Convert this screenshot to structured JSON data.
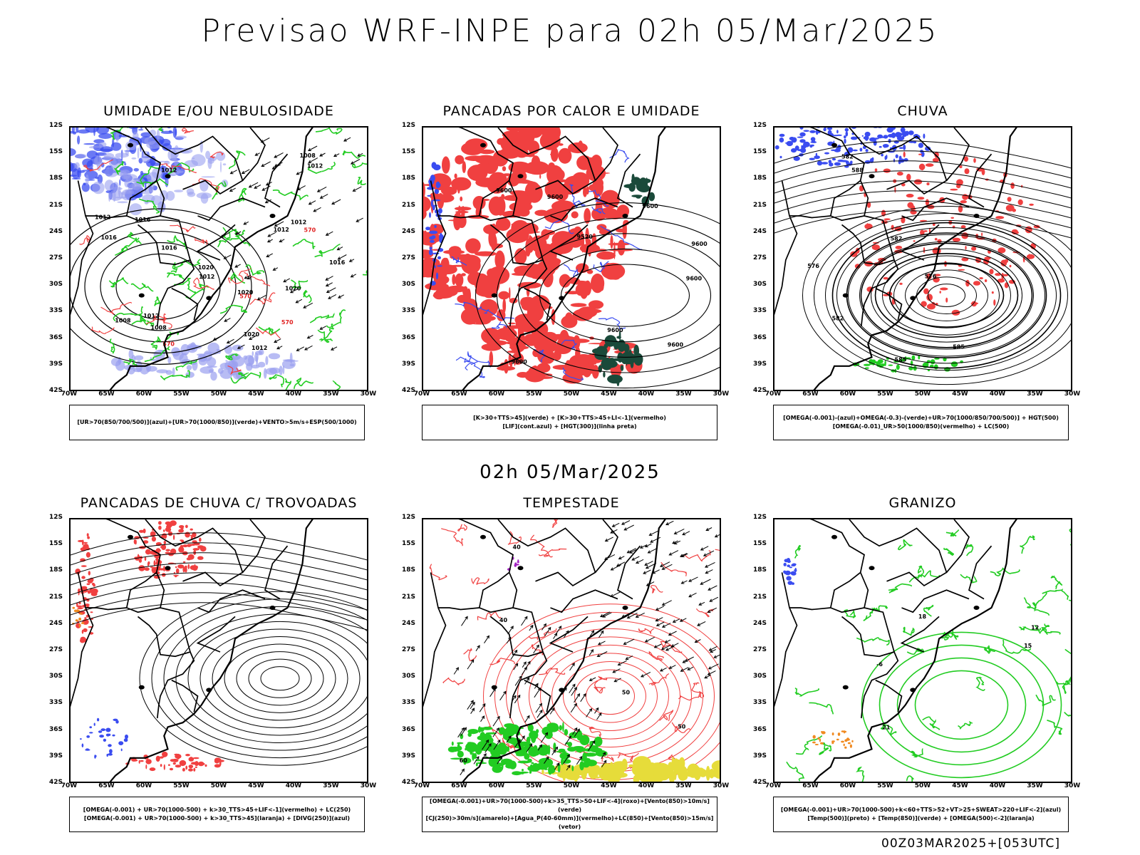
{
  "main_title": "Previsao WRF-INPE  para 02h 05/Mar/2025",
  "mid_title": "02h 05/Mar/2025",
  "footer": "00Z03MAR2025+[053UTC]",
  "lat_ticks": [
    "12S",
    "15S",
    "18S",
    "21S",
    "24S",
    "27S",
    "30S",
    "33S",
    "36S",
    "39S",
    "42S"
  ],
  "lon_ticks": [
    "70W",
    "65W",
    "60W",
    "55W",
    "50W",
    "45W",
    "40W",
    "35W",
    "30W"
  ],
  "panels": [
    {
      "title": "UMIDADE E/OU NEBULOSIDADE",
      "legend": [
        "[UR>70(850/700/500)](azul)+[UR>70(1000/850)](verde)+VENTO>5m/s+ESP(500/1000)"
      ],
      "contour_labels": [
        "1012",
        "1012",
        "1012",
        "1016",
        "1012",
        "1020",
        "1016",
        "1016",
        "1012",
        "1008",
        "1008",
        "1012",
        "1020",
        "1020",
        "1012",
        "1008",
        "1016",
        "1012",
        "1020",
        "570",
        "570",
        "570",
        "570"
      ]
    },
    {
      "title": "PANCADAS POR CALOR E UMIDADE",
      "legend": [
        "[K>30+TTS>45](verde) + [K>30+TTS>45+LI<-1](vermelho)",
        "[LIF](cont.azul) + [HGT(300)](linha preta)"
      ],
      "contour_labels": [
        "9600",
        "9600",
        "9600",
        "9600",
        "9600",
        "9600",
        "9520",
        "9600",
        "9600"
      ]
    },
    {
      "title": "CHUVA",
      "legend": [
        "[OMEGA(-0.001)-(azul)+OMEGA(-0.3)-(verde)+UR>70(1000/850/700/500)] + HGT(500)",
        "[OMEGA(-0.01)_UR>50(1000/850)(vermelho) + LC(500)"
      ],
      "contour_labels": [
        "582",
        "585",
        "576",
        "576",
        "588",
        "582",
        "585",
        "582"
      ]
    },
    {
      "title": "PANCADAS DE CHUVA C/ TROVOADAS",
      "legend": [
        "[OMEGA(-0.001) + UR>70(1000-500) + k>30_TTS>45+LIF<-1](vermelho) + LC(250)",
        "[OMEGA(-0.001) + UR>70(1000-500) + k>30_TTS>45](laranja) + [DIVG(250)](azul)"
      ],
      "contour_labels": []
    },
    {
      "title": "TEMPESTADE",
      "legend": [
        "[OMEGA(-0.001)+UR>70(1000-500)+k>35_TTS>50+LIF<-4](roxo)+[Vento(850)>10m/s](verde)",
        "[CJ(250)>30m/s](amarelo)+[Agua_P(40-60mm)](vermelho)+LC(850)+[Vento(850)>15m/s](vetor)"
      ],
      "contour_labels": [
        "60",
        "50",
        "40",
        "40",
        "50"
      ]
    },
    {
      "title": "GRANIZO",
      "legend": [
        "[OMEGA(-0.001)+UR>70(1000-500)+k<60+TTS>52+VT>25+SWEAT>220+LIF<-2](azul)",
        "[Temp(500)](preto) + [Temp(850)](verde) + [OMEGA(500)<-2](laranja)"
      ],
      "contour_labels": [
        "21",
        "18",
        "15",
        "12",
        "-6"
      ]
    }
  ],
  "colors": {
    "red": "#f04040",
    "green": "#22cc22",
    "blue": "#3a4cf0",
    "lightblue": "#9aa0f0",
    "darkgreen": "#1a4a3a",
    "yellow": "#e6dc3a",
    "orange": "#f08a20",
    "purple": "#a020c0"
  }
}
